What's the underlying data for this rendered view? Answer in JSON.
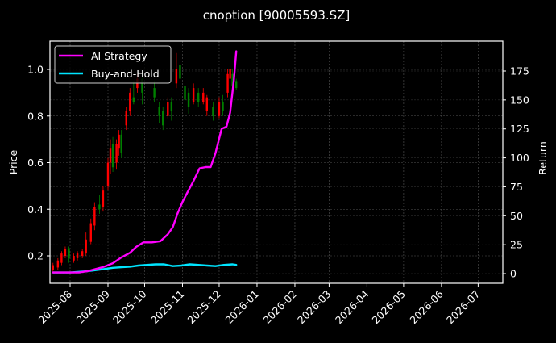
{
  "chart_data": {
    "type": "candlestick+line",
    "title": "cnoption [90005593.SZ]",
    "xlabel": "",
    "ylabel": "Price",
    "ylabel_right": "Return",
    "ylim": [
      0.083,
      1.12
    ],
    "ylim_right": [
      -1,
      208
    ],
    "grid": true,
    "legend_position": "upper left",
    "x_ticks": [
      "2025-08",
      "2025-09",
      "2025-10",
      "2025-11",
      "2025-12",
      "2026-01",
      "2026-02",
      "2026-03",
      "2026-04",
      "2026-05",
      "2026-06",
      "2026-07"
    ],
    "y_ticks": [
      "0.2",
      "0.4",
      "0.6",
      "0.8",
      "1.0"
    ],
    "y_ticks_right": [
      "0",
      "25",
      "50",
      "75",
      "100",
      "125",
      "150",
      "175"
    ],
    "legend": [
      {
        "label": "AI Strategy",
        "color": "#ff00ff"
      },
      {
        "label": "Buy-and-Hold",
        "color": "#00e5ff"
      }
    ],
    "series": [
      {
        "name": "AI Strategy",
        "axis": "right",
        "color": "#ff00ff",
        "x": [
          "2025-07-18",
          "2025-07-25",
          "2025-08-01",
          "2025-08-08",
          "2025-08-15",
          "2025-08-22",
          "2025-08-29",
          "2025-09-05",
          "2025-09-12",
          "2025-09-19",
          "2025-09-24",
          "2025-09-30",
          "2025-10-07",
          "2025-10-14",
          "2025-10-20",
          "2025-10-24",
          "2025-10-28",
          "2025-11-01",
          "2025-11-05",
          "2025-11-10",
          "2025-11-15",
          "2025-11-20",
          "2025-11-24",
          "2025-11-28",
          "2025-12-03",
          "2025-12-07",
          "2025-12-10",
          "2025-12-13",
          "2025-12-15"
        ],
        "values": [
          1,
          1,
          1,
          1,
          2,
          4,
          6,
          9,
          14,
          18,
          23,
          27,
          27,
          28,
          34,
          40,
          52,
          62,
          70,
          80,
          91,
          92,
          92,
          104,
          125,
          127,
          139,
          167,
          192
        ]
      },
      {
        "name": "Buy-and-Hold",
        "axis": "right",
        "color": "#00e5ff",
        "x": [
          "2025-07-18",
          "2025-07-25",
          "2025-08-01",
          "2025-08-08",
          "2025-08-15",
          "2025-08-22",
          "2025-08-29",
          "2025-09-05",
          "2025-09-12",
          "2025-09-19",
          "2025-09-26",
          "2025-10-03",
          "2025-10-10",
          "2025-10-17",
          "2025-10-24",
          "2025-10-31",
          "2025-11-07",
          "2025-11-14",
          "2025-11-21",
          "2025-11-28",
          "2025-12-05",
          "2025-12-12",
          "2025-12-15"
        ],
        "values": [
          1,
          1,
          1,
          1.5,
          2,
          3,
          4,
          5,
          5.5,
          6,
          7,
          7.5,
          8,
          8,
          6.5,
          7,
          8,
          7.5,
          7,
          6.5,
          7.5,
          8,
          7.5
        ]
      }
    ],
    "candles": [
      {
        "x": "2025-07-18",
        "open": 0.14,
        "close": 0.16,
        "high": 0.17,
        "low": 0.13
      },
      {
        "x": "2025-07-22",
        "open": 0.15,
        "close": 0.18,
        "high": 0.19,
        "low": 0.14
      },
      {
        "x": "2025-07-25",
        "open": 0.17,
        "close": 0.21,
        "high": 0.22,
        "low": 0.16
      },
      {
        "x": "2025-07-28",
        "open": 0.2,
        "close": 0.23,
        "high": 0.24,
        "low": 0.19
      },
      {
        "x": "2025-07-31",
        "open": 0.23,
        "close": 0.19,
        "high": 0.24,
        "low": 0.17
      },
      {
        "x": "2025-08-04",
        "open": 0.18,
        "close": 0.2,
        "high": 0.21,
        "low": 0.17
      },
      {
        "x": "2025-08-07",
        "open": 0.19,
        "close": 0.21,
        "high": 0.22,
        "low": 0.18
      },
      {
        "x": "2025-08-11",
        "open": 0.2,
        "close": 0.22,
        "high": 0.23,
        "low": 0.19
      },
      {
        "x": "2025-08-14",
        "open": 0.21,
        "close": 0.27,
        "high": 0.3,
        "low": 0.2
      },
      {
        "x": "2025-08-18",
        "open": 0.26,
        "close": 0.34,
        "high": 0.36,
        "low": 0.25
      },
      {
        "x": "2025-08-21",
        "open": 0.33,
        "close": 0.41,
        "high": 0.43,
        "low": 0.31
      },
      {
        "x": "2025-08-25",
        "open": 0.42,
        "close": 0.4,
        "high": 0.46,
        "low": 0.38
      },
      {
        "x": "2025-08-28",
        "open": 0.41,
        "close": 0.48,
        "high": 0.5,
        "low": 0.39
      },
      {
        "x": "2025-09-01",
        "open": 0.5,
        "close": 0.6,
        "high": 0.62,
        "low": 0.48
      },
      {
        "x": "2025-09-03",
        "open": 0.6,
        "close": 0.66,
        "high": 0.7,
        "low": 0.55
      },
      {
        "x": "2025-09-05",
        "open": 0.68,
        "close": 0.58,
        "high": 0.71,
        "low": 0.56
      },
      {
        "x": "2025-09-08",
        "open": 0.6,
        "close": 0.68,
        "high": 0.7,
        "low": 0.57
      },
      {
        "x": "2025-09-10",
        "open": 0.66,
        "close": 0.72,
        "high": 0.74,
        "low": 0.63
      },
      {
        "x": "2025-09-12",
        "open": 0.72,
        "close": 0.64,
        "high": 0.74,
        "low": 0.62
      },
      {
        "x": "2025-09-16",
        "open": 0.76,
        "close": 0.82,
        "high": 0.84,
        "low": 0.74
      },
      {
        "x": "2025-09-19",
        "open": 0.82,
        "close": 0.9,
        "high": 0.92,
        "low": 0.8
      },
      {
        "x": "2025-09-22",
        "open": 0.88,
        "close": 0.86,
        "high": 0.95,
        "low": 0.85
      },
      {
        "x": "2025-09-25",
        "open": 0.92,
        "close": 0.96,
        "high": 0.98,
        "low": 0.9
      },
      {
        "x": "2025-09-29",
        "open": 0.96,
        "close": 0.9,
        "high": 0.99,
        "low": 0.85
      },
      {
        "x": "2025-10-09",
        "open": 0.92,
        "close": 0.88,
        "high": 0.95,
        "low": 0.86
      },
      {
        "x": "2025-10-13",
        "open": 0.84,
        "close": 0.8,
        "high": 0.86,
        "low": 0.77
      },
      {
        "x": "2025-10-16",
        "open": 0.82,
        "close": 0.76,
        "high": 0.84,
        "low": 0.74
      },
      {
        "x": "2025-10-20",
        "open": 0.8,
        "close": 0.86,
        "high": 0.88,
        "low": 0.79
      },
      {
        "x": "2025-10-23",
        "open": 0.86,
        "close": 0.82,
        "high": 0.88,
        "low": 0.78
      },
      {
        "x": "2025-10-27",
        "open": 0.94,
        "close": 1.0,
        "high": 1.07,
        "low": 0.92
      },
      {
        "x": "2025-10-30",
        "open": 1.02,
        "close": 0.96,
        "high": 1.06,
        "low": 0.93
      },
      {
        "x": "2025-11-03",
        "open": 0.93,
        "close": 0.87,
        "high": 0.95,
        "low": 0.84
      },
      {
        "x": "2025-11-06",
        "open": 0.9,
        "close": 0.84,
        "high": 0.92,
        "low": 0.81
      },
      {
        "x": "2025-11-10",
        "open": 0.86,
        "close": 0.92,
        "high": 0.94,
        "low": 0.85
      },
      {
        "x": "2025-11-14",
        "open": 0.9,
        "close": 0.86,
        "high": 0.92,
        "low": 0.84
      },
      {
        "x": "2025-11-18",
        "open": 0.86,
        "close": 0.9,
        "high": 0.92,
        "low": 0.85
      },
      {
        "x": "2025-11-21",
        "open": 0.82,
        "close": 0.88,
        "high": 0.89,
        "low": 0.8
      },
      {
        "x": "2025-11-26",
        "open": 0.84,
        "close": 0.8,
        "high": 0.86,
        "low": 0.78
      },
      {
        "x": "2025-12-01",
        "open": 0.8,
        "close": 0.86,
        "high": 0.88,
        "low": 0.79
      },
      {
        "x": "2025-12-04",
        "open": 0.86,
        "close": 0.82,
        "high": 0.89,
        "low": 0.8
      },
      {
        "x": "2025-12-08",
        "open": 0.9,
        "close": 0.98,
        "high": 1.0,
        "low": 0.88
      },
      {
        "x": "2025-12-10",
        "open": 0.96,
        "close": 1.0,
        "high": 1.01,
        "low": 0.92
      },
      {
        "x": "2025-12-12",
        "open": 0.98,
        "close": 0.93,
        "high": 1.0,
        "low": 0.9
      },
      {
        "x": "2025-12-15",
        "open": 0.95,
        "close": 0.92,
        "high": 0.96,
        "low": 0.91
      }
    ],
    "candle_colors": {
      "up": "#ff0000",
      "down": "#008000"
    }
  }
}
